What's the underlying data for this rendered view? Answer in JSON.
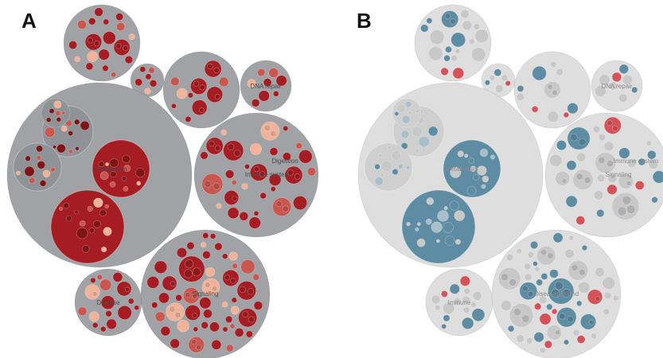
{
  "panels": [
    {
      "letter": "A",
      "palette": {
        "outer": "#a0a2a5",
        "inner": "#8f9296",
        "hit": "#a51d22",
        "hit_dark": "#7e1416",
        "mid": "#c9574f",
        "light": "#f0b39a",
        "label": "#4a4a4a"
      },
      "labels": [
        "DNA repair",
        "Digestion",
        "Metabolism",
        "Immune system",
        "Signaling",
        "Disease"
      ]
    },
    {
      "letter": "B",
      "palette": {
        "outer": "#dedede",
        "inner": "#cfcfcf",
        "hit": "#5e8da3",
        "hit_dark": "#4a7486",
        "mid": "#a9c0cc",
        "light": "#c8c8c8",
        "label": "#8a8a8a",
        "alert": "#d4525a"
      },
      "labels": [
        "DNA repair",
        "Immune system",
        "Metabolism",
        "Signaling",
        "Disease/Wound",
        "Immune"
      ]
    }
  ]
}
